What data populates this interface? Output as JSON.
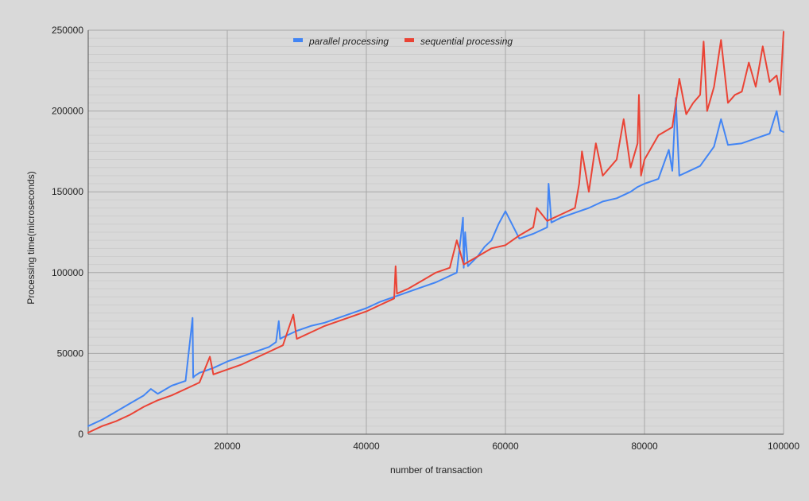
{
  "chart_data": {
    "type": "line",
    "title": "",
    "xlabel": "number of transaction",
    "ylabel": "Processing time(microseconds)",
    "xlim": [
      0,
      100000
    ],
    "ylim": [
      0,
      250000
    ],
    "x_ticks": [
      20000,
      40000,
      60000,
      80000,
      100000
    ],
    "y_ticks": [
      0,
      50000,
      100000,
      150000,
      200000,
      250000
    ],
    "grid": true,
    "legend_position": "top",
    "series": [
      {
        "name": "parallel processing",
        "color": "#4285f4",
        "x": [
          0,
          2000,
          4000,
          6000,
          8000,
          9000,
          10000,
          12000,
          14000,
          15000,
          15100,
          15300,
          16000,
          18000,
          20000,
          22000,
          24000,
          26000,
          27000,
          27400,
          27600,
          28000,
          30000,
          32000,
          34000,
          36000,
          38000,
          40000,
          42000,
          44000,
          46000,
          48000,
          50000,
          52000,
          53000,
          53900,
          54000,
          54200,
          54600,
          56000,
          57000,
          58000,
          59000,
          60000,
          62000,
          64000,
          66000,
          66200,
          66600,
          68000,
          70000,
          72000,
          74000,
          76000,
          78000,
          79000,
          80000,
          82000,
          83500,
          84000,
          84500,
          85000,
          86000,
          88000,
          90000,
          91000,
          92000,
          94000,
          96000,
          98000,
          99000,
          99500,
          100000
        ],
        "y": [
          5000,
          9000,
          14000,
          19000,
          24000,
          28000,
          25000,
          30000,
          33000,
          72000,
          35000,
          36000,
          38000,
          41000,
          45000,
          48000,
          51000,
          54000,
          57000,
          70000,
          59000,
          60000,
          64000,
          67000,
          69000,
          72000,
          75000,
          78000,
          82000,
          85000,
          88000,
          91000,
          94000,
          98000,
          100000,
          134000,
          103000,
          125000,
          104000,
          110000,
          116000,
          120000,
          130000,
          138000,
          121000,
          124000,
          128000,
          155000,
          131000,
          134000,
          137000,
          140000,
          144000,
          146000,
          150000,
          153000,
          155000,
          158000,
          176000,
          163000,
          208000,
          160000,
          162000,
          166000,
          178000,
          195000,
          179000,
          180000,
          183000,
          186000,
          200000,
          188000,
          187000
        ]
      },
      {
        "name": "sequential processing",
        "color": "#ea4335",
        "x": [
          0,
          2000,
          4000,
          6000,
          8000,
          10000,
          12000,
          14000,
          16000,
          17500,
          18000,
          20000,
          22000,
          24000,
          26000,
          28000,
          29500,
          30000,
          32000,
          34000,
          36000,
          38000,
          40000,
          42000,
          44000,
          44200,
          44400,
          46000,
          48000,
          50000,
          52000,
          53000,
          54000,
          56000,
          58000,
          60000,
          62000,
          64000,
          64500,
          66000,
          68000,
          70000,
          70600,
          71000,
          72000,
          73000,
          74000,
          76000,
          77000,
          78000,
          79000,
          79200,
          79500,
          80000,
          82000,
          84000,
          85000,
          86000,
          87000,
          88000,
          88500,
          89000,
          90000,
          91000,
          92000,
          93000,
          94000,
          95000,
          96000,
          97000,
          98000,
          99000,
          99500,
          100000
        ],
        "y": [
          1000,
          5000,
          8000,
          12000,
          17000,
          21000,
          24000,
          28000,
          32000,
          48000,
          37000,
          40000,
          43000,
          47000,
          51000,
          55000,
          74000,
          59000,
          63000,
          67000,
          70000,
          73000,
          76000,
          80000,
          84000,
          104000,
          87000,
          90000,
          95000,
          100000,
          103000,
          120000,
          105000,
          110000,
          115000,
          117000,
          123000,
          128000,
          140000,
          132000,
          136000,
          140000,
          155000,
          175000,
          150000,
          180000,
          160000,
          170000,
          195000,
          165000,
          180000,
          210000,
          160000,
          170000,
          185000,
          190000,
          220000,
          198000,
          205000,
          210000,
          243000,
          200000,
          215000,
          244000,
          205000,
          210000,
          212000,
          230000,
          215000,
          240000,
          218000,
          222000,
          210000,
          249000
        ]
      }
    ]
  }
}
